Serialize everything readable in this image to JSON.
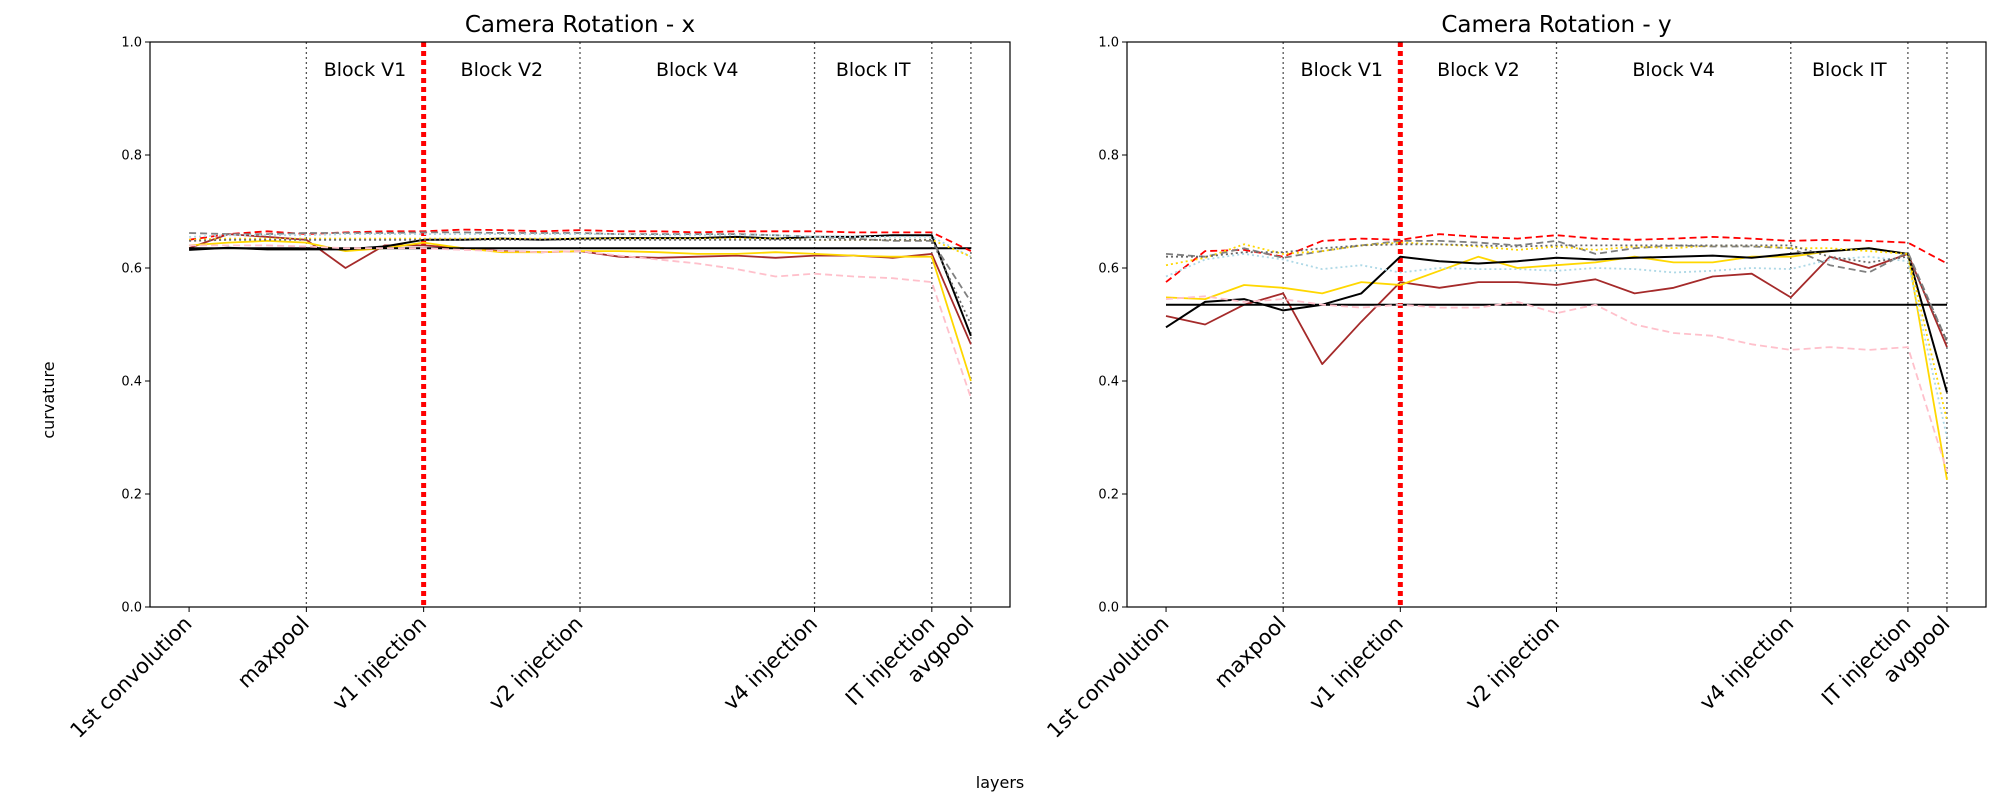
{
  "figure": {
    "ylabel": "curvature",
    "xlabel": "layers"
  },
  "chart_data": [
    {
      "type": "line",
      "title": "Camera Rotation - x",
      "ylim": [
        0.0,
        1.0
      ],
      "yticks": [
        "0.0",
        "0.2",
        "0.4",
        "0.6",
        "0.8",
        "1.0"
      ],
      "xtick_labels": [
        "1st convolution",
        "maxpool",
        "v1 injection",
        "v2 injection",
        "v4 injection",
        "IT injection",
        "avgpool"
      ],
      "xtick_positions": [
        0,
        3,
        6,
        10,
        16,
        19,
        20
      ],
      "xlim": [
        -1,
        21
      ],
      "blocks": [
        "Block V1",
        "Block V2",
        "Block V4",
        "Block IT"
      ],
      "block_positions": [
        4.5,
        8,
        13,
        17.5
      ],
      "injection_index": 6,
      "x": [
        0,
        1,
        2,
        3,
        4,
        5,
        6,
        7,
        8,
        9,
        10,
        11,
        12,
        13,
        14,
        15,
        16,
        17,
        18,
        19,
        20
      ],
      "series": [
        {
          "color": "#a52a2a",
          "dash": "solid",
          "values": [
            0.635,
            0.66,
            0.655,
            0.65,
            0.6,
            0.64,
            0.64,
            0.635,
            0.63,
            0.628,
            0.63,
            0.62,
            0.618,
            0.62,
            0.622,
            0.618,
            0.622,
            0.622,
            0.618,
            0.625,
            0.465
          ]
        },
        {
          "color": "#ffd700",
          "dash": "solid",
          "values": [
            0.64,
            0.645,
            0.648,
            0.645,
            0.63,
            0.635,
            0.645,
            0.635,
            0.628,
            0.628,
            0.63,
            0.63,
            0.628,
            0.625,
            0.625,
            0.628,
            0.625,
            0.622,
            0.62,
            0.62,
            0.4
          ]
        },
        {
          "color": "#000000",
          "dash": "solid",
          "values": [
            0.632,
            0.636,
            0.633,
            0.633,
            0.633,
            0.638,
            0.65,
            0.65,
            0.652,
            0.65,
            0.652,
            0.653,
            0.653,
            0.653,
            0.655,
            0.652,
            0.655,
            0.655,
            0.658,
            0.658,
            0.48
          ]
        },
        {
          "color": "#000000",
          "dash": "solid",
          "values": [
            0.635,
            0.635,
            0.635,
            0.635,
            0.635,
            0.635,
            0.635,
            0.635,
            0.635,
            0.635,
            0.635,
            0.635,
            0.635,
            0.635,
            0.635,
            0.635,
            0.635,
            0.635,
            0.635,
            0.635,
            0.635
          ]
        },
        {
          "color": "#ff0000",
          "dash": "dashed",
          "values": [
            0.65,
            0.66,
            0.665,
            0.66,
            0.663,
            0.665,
            0.665,
            0.668,
            0.667,
            0.665,
            0.667,
            0.665,
            0.665,
            0.663,
            0.665,
            0.665,
            0.665,
            0.663,
            0.663,
            0.663,
            0.63
          ]
        },
        {
          "color": "#808080",
          "dash": "dashed",
          "values": [
            0.662,
            0.66,
            0.66,
            0.662,
            0.662,
            0.662,
            0.663,
            0.663,
            0.662,
            0.662,
            0.662,
            0.66,
            0.66,
            0.66,
            0.66,
            0.658,
            0.655,
            0.652,
            0.648,
            0.648,
            0.54
          ]
        },
        {
          "color": "#ffc0cb",
          "dash": "dashed",
          "values": [
            0.64,
            0.64,
            0.64,
            0.638,
            0.635,
            0.635,
            0.635,
            0.632,
            0.63,
            0.628,
            0.63,
            0.622,
            0.615,
            0.608,
            0.598,
            0.585,
            0.59,
            0.585,
            0.582,
            0.575,
            0.37
          ]
        },
        {
          "color": "#add8e6",
          "dash": "dotted",
          "values": [
            0.655,
            0.658,
            0.658,
            0.658,
            0.66,
            0.66,
            0.66,
            0.66,
            0.66,
            0.66,
            0.66,
            0.66,
            0.658,
            0.658,
            0.658,
            0.658,
            0.655,
            0.655,
            0.655,
            0.655,
            0.62
          ]
        },
        {
          "color": "#ffd700",
          "dash": "dotted",
          "values": [
            0.65,
            0.652,
            0.652,
            0.652,
            0.652,
            0.652,
            0.652,
            0.652,
            0.652,
            0.652,
            0.652,
            0.652,
            0.652,
            0.652,
            0.652,
            0.652,
            0.65,
            0.65,
            0.65,
            0.65,
            0.62
          ]
        },
        {
          "color": "#696969",
          "dash": "dotted",
          "values": [
            0.648,
            0.65,
            0.65,
            0.65,
            0.65,
            0.65,
            0.65,
            0.65,
            0.65,
            0.65,
            0.65,
            0.65,
            0.65,
            0.65,
            0.65,
            0.65,
            0.65,
            0.65,
            0.65,
            0.65,
            0.5
          ]
        }
      ]
    },
    {
      "type": "line",
      "title": "Camera Rotation - y",
      "ylim": [
        0.0,
        1.0
      ],
      "yticks": [
        "0.0",
        "0.2",
        "0.4",
        "0.6",
        "0.8",
        "1.0"
      ],
      "xtick_labels": [
        "1st convolution",
        "maxpool",
        "v1 injection",
        "v2 injection",
        "v4 injection",
        "IT injection",
        "avgpool"
      ],
      "xtick_positions": [
        0,
        3,
        6,
        10,
        16,
        19,
        20
      ],
      "xlim": [
        -1,
        21
      ],
      "blocks": [
        "Block V1",
        "Block V2",
        "Block V4",
        "Block IT"
      ],
      "block_positions": [
        4.5,
        8,
        13,
        17.5
      ],
      "injection_index": 6,
      "x": [
        0,
        1,
        2,
        3,
        4,
        5,
        6,
        7,
        8,
        9,
        10,
        11,
        12,
        13,
        14,
        15,
        16,
        17,
        18,
        19,
        20
      ],
      "series": [
        {
          "color": "#a52a2a",
          "dash": "solid",
          "values": [
            0.515,
            0.5,
            0.535,
            0.555,
            0.43,
            0.505,
            0.575,
            0.565,
            0.575,
            0.575,
            0.57,
            0.58,
            0.555,
            0.565,
            0.585,
            0.59,
            0.548,
            0.62,
            0.6,
            0.625,
            0.46
          ]
        },
        {
          "color": "#ffd700",
          "dash": "solid",
          "values": [
            0.548,
            0.545,
            0.57,
            0.565,
            0.555,
            0.575,
            0.57,
            0.595,
            0.62,
            0.6,
            0.605,
            0.61,
            0.62,
            0.61,
            0.61,
            0.62,
            0.62,
            0.63,
            0.635,
            0.625,
            0.225
          ]
        },
        {
          "color": "#000000",
          "dash": "solid",
          "values": [
            0.495,
            0.54,
            0.545,
            0.525,
            0.535,
            0.555,
            0.62,
            0.612,
            0.608,
            0.612,
            0.618,
            0.615,
            0.618,
            0.62,
            0.622,
            0.618,
            0.625,
            0.63,
            0.635,
            0.625,
            0.38
          ]
        },
        {
          "color": "#000000",
          "dash": "solid",
          "values": [
            0.535,
            0.535,
            0.535,
            0.535,
            0.535,
            0.535,
            0.535,
            0.535,
            0.535,
            0.535,
            0.535,
            0.535,
            0.535,
            0.535,
            0.535,
            0.535,
            0.535,
            0.535,
            0.535,
            0.535,
            0.535
          ]
        },
        {
          "color": "#ff0000",
          "dash": "dashed",
          "values": [
            0.575,
            0.63,
            0.632,
            0.62,
            0.648,
            0.652,
            0.65,
            0.66,
            0.655,
            0.652,
            0.658,
            0.652,
            0.65,
            0.652,
            0.655,
            0.652,
            0.648,
            0.65,
            0.648,
            0.645,
            0.608
          ]
        },
        {
          "color": "#808080",
          "dash": "dashed",
          "values": [
            0.625,
            0.62,
            0.635,
            0.618,
            0.63,
            0.64,
            0.648,
            0.648,
            0.645,
            0.64,
            0.648,
            0.625,
            0.635,
            0.64,
            0.638,
            0.638,
            0.635,
            0.605,
            0.592,
            0.628,
            0.47
          ]
        },
        {
          "color": "#ffc0cb",
          "dash": "dashed",
          "values": [
            0.545,
            0.55,
            0.54,
            0.545,
            0.535,
            0.53,
            0.535,
            0.53,
            0.53,
            0.54,
            0.52,
            0.535,
            0.5,
            0.485,
            0.48,
            0.465,
            0.455,
            0.46,
            0.455,
            0.46,
            0.24
          ]
        },
        {
          "color": "#add8e6",
          "dash": "dotted",
          "values": [
            0.585,
            0.615,
            0.625,
            0.615,
            0.598,
            0.605,
            0.592,
            0.6,
            0.598,
            0.598,
            0.595,
            0.6,
            0.598,
            0.592,
            0.595,
            0.6,
            0.598,
            0.615,
            0.62,
            0.612,
            0.3
          ]
        },
        {
          "color": "#ffd700",
          "dash": "dotted",
          "values": [
            0.605,
            0.618,
            0.642,
            0.625,
            0.63,
            0.64,
            0.645,
            0.642,
            0.638,
            0.632,
            0.638,
            0.632,
            0.638,
            0.635,
            0.64,
            0.64,
            0.635,
            0.635,
            0.63,
            0.625,
            0.33
          ]
        },
        {
          "color": "#696969",
          "dash": "dotted",
          "values": [
            0.62,
            0.62,
            0.628,
            0.628,
            0.635,
            0.64,
            0.642,
            0.642,
            0.64,
            0.638,
            0.64,
            0.64,
            0.64,
            0.64,
            0.64,
            0.64,
            0.64,
            0.62,
            0.61,
            0.62,
            0.47
          ]
        }
      ]
    }
  ]
}
